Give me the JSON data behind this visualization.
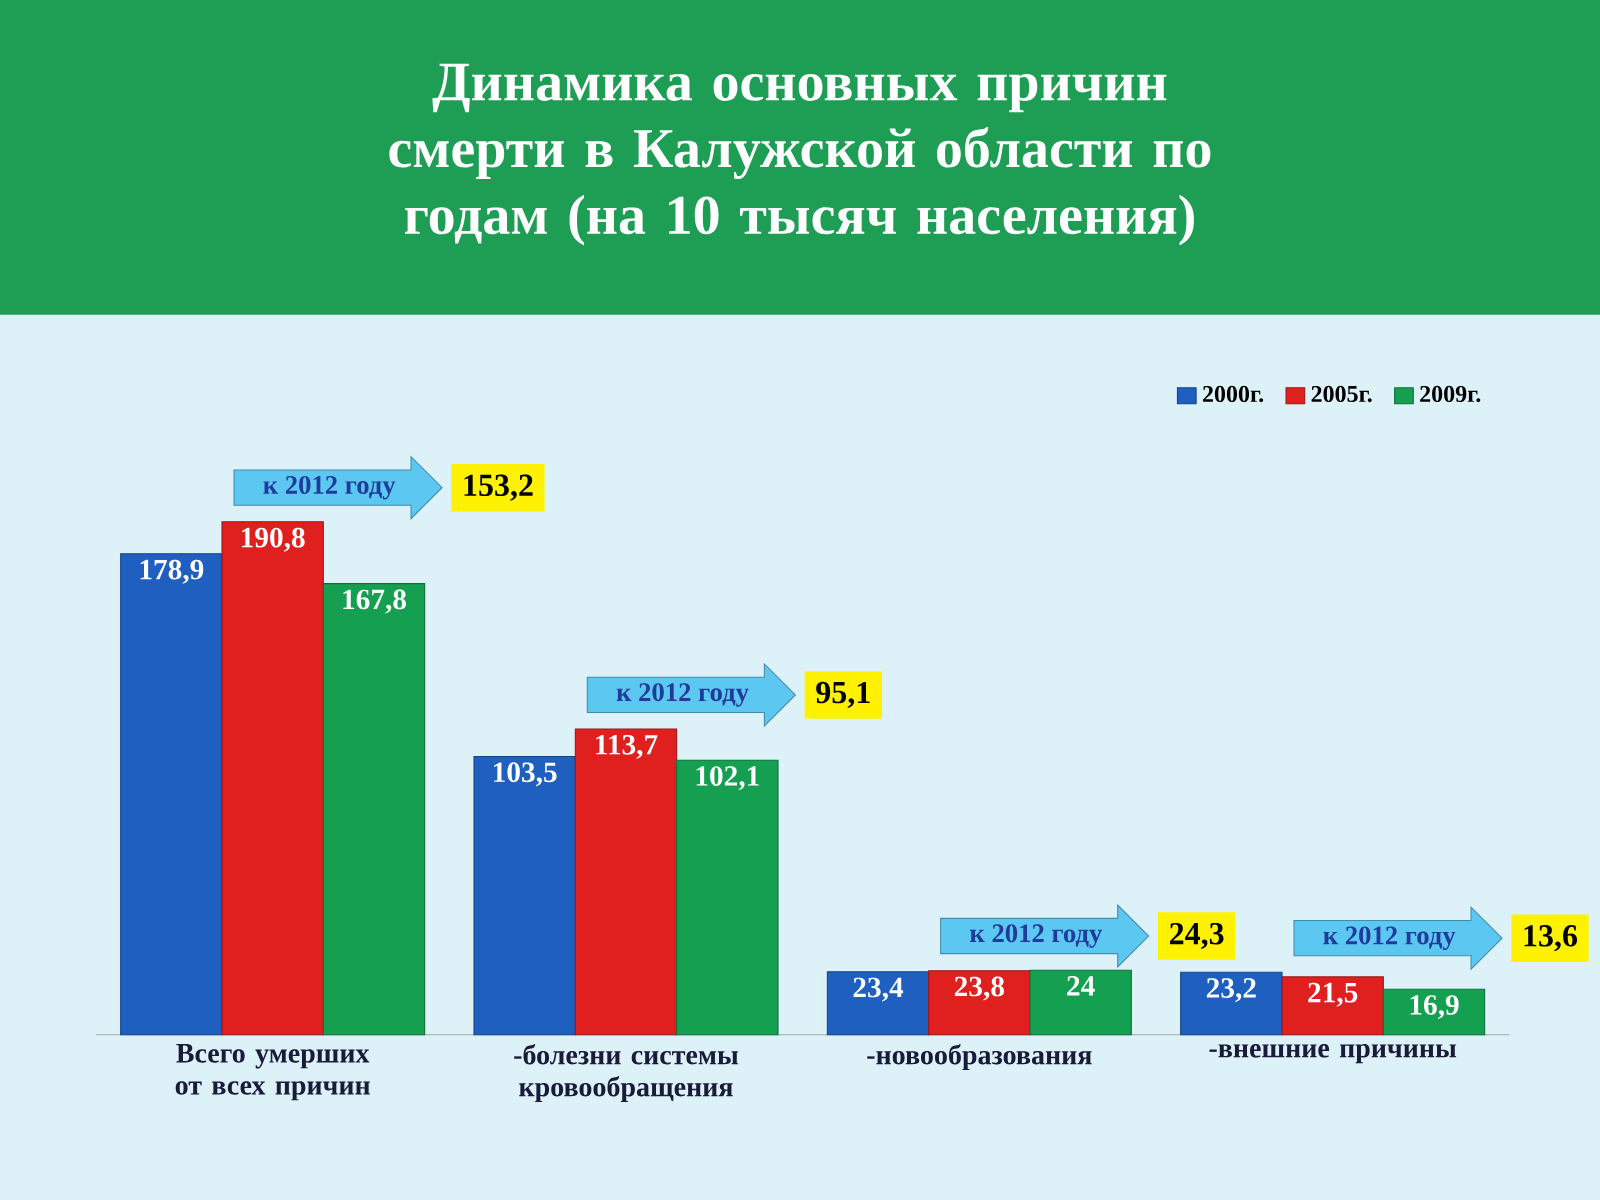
{
  "chart_data": {
    "type": "bar",
    "title": "Динамика основных причин смерти в Калужской области по годам (на 10 тысяч населения)",
    "categories": [
      "Всего умерших от всех причин",
      "-болезни системы кровообращения",
      "-новообразования",
      "-внешние причины"
    ],
    "series": [
      {
        "name": "2000г.",
        "color": "#1f5fbf",
        "values": [
          178.9,
          103.5,
          23.4,
          23.2
        ],
        "value_labels": [
          "178,9",
          "103,5",
          "23,4",
          "23,2"
        ]
      },
      {
        "name": "2005г.",
        "color": "#e0201f",
        "values": [
          190.8,
          113.7,
          23.8,
          21.5
        ],
        "value_labels": [
          "190,8",
          "113,7",
          "23,8",
          "21,5"
        ]
      },
      {
        "name": "2009г.",
        "color": "#14a050",
        "values": [
          167.8,
          102.1,
          24,
          16.9
        ],
        "value_labels": [
          "167,8",
          "102,1",
          "24",
          "16,9"
        ]
      }
    ],
    "legend": "top right",
    "annotations": [
      "к 2012 году",
      "153,2",
      "к 2012 году",
      "95,1",
      "к 2012 году",
      "24,3",
      "к 2012 году",
      "13,6"
    ]
  }
}
